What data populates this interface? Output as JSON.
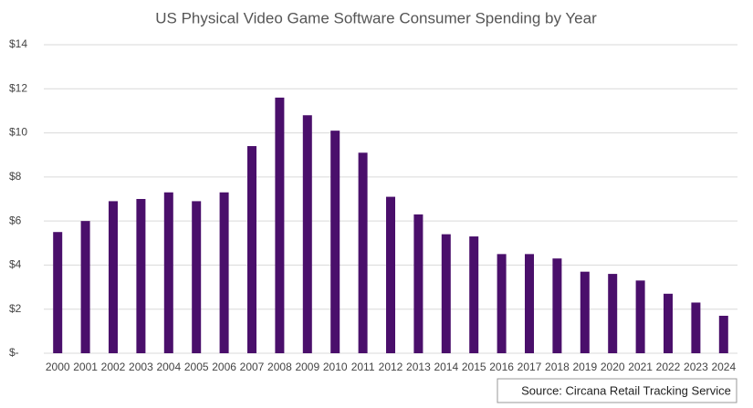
{
  "chart_data": {
    "type": "bar",
    "title": "US Physical Video Game Software Consumer Spending by Year",
    "categories": [
      "2000",
      "2001",
      "2002",
      "2003",
      "2004",
      "2005",
      "2006",
      "2007",
      "2008",
      "2009",
      "2010",
      "2011",
      "2012",
      "2013",
      "2014",
      "2015",
      "2016",
      "2017",
      "2018",
      "2019",
      "2020",
      "2021",
      "2022",
      "2023",
      "2024"
    ],
    "values": [
      5.5,
      6.0,
      6.9,
      7.0,
      7.3,
      6.9,
      7.3,
      9.4,
      11.6,
      10.8,
      10.1,
      9.1,
      7.1,
      6.3,
      5.4,
      5.3,
      4.5,
      4.5,
      4.3,
      3.7,
      3.6,
      3.3,
      2.7,
      2.3,
      1.7
    ],
    "color": "#4a0f6b",
    "ylim": [
      0,
      14
    ],
    "yticks": [
      {
        "value": 0,
        "label": "$-"
      },
      {
        "value": 2,
        "label": "$2"
      },
      {
        "value": 4,
        "label": "$4"
      },
      {
        "value": 6,
        "label": "$6"
      },
      {
        "value": 8,
        "label": "$8"
      },
      {
        "value": 10,
        "label": "$10"
      },
      {
        "value": 12,
        "label": "$12"
      },
      {
        "value": 14,
        "label": "$14"
      }
    ],
    "grid": true,
    "source": "Source: Circana Retail Tracking Service"
  }
}
